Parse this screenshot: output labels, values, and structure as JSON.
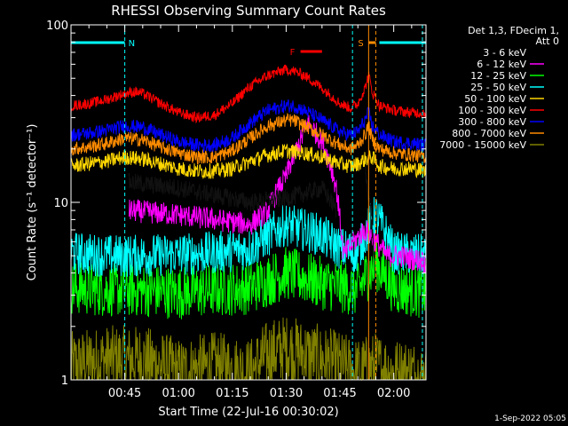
{
  "chart_data": {
    "type": "line",
    "title": "RHESSI Observing Summary Count Rates",
    "xlabel": "Start Time (22-Jul-16 00:30:02)",
    "ylabel": "Count Rate (s⁻¹ detector⁻¹)",
    "yscale": "log",
    "ylim": [
      1,
      100
    ],
    "xlim_minutes": [
      0,
      99
    ],
    "x_tick_labels": [
      "00:45",
      "01:00",
      "01:15",
      "01:30",
      "01:45",
      "02:00"
    ],
    "x_tick_minutes": [
      15,
      30,
      45,
      60,
      75,
      90
    ],
    "y_tick_labels": [
      "1",
      "10",
      "100"
    ],
    "y_tick_values": [
      1,
      10,
      100
    ],
    "legend_header": [
      "Det 1,3, FDecim 1,",
      "Att 0"
    ],
    "legend_position": "top-right",
    "series": [
      {
        "name": "3 - 6 keV",
        "color": "#000000",
        "x": [
          0,
          15,
          16,
          30,
          40,
          50,
          60,
          70,
          74,
          75,
          76,
          82,
          85,
          88,
          92,
          95,
          99
        ],
        "y": [
          null,
          null,
          13,
          12,
          11,
          10,
          10.5,
          12,
          9,
          null,
          null,
          15,
          3,
          null,
          null,
          null,
          null
        ]
      },
      {
        "name": "6 - 12 keV",
        "color": "#ff00ff",
        "x": [
          0,
          15,
          16,
          30,
          40,
          50,
          55,
          60,
          64,
          66,
          70,
          74,
          75,
          76,
          82,
          85,
          88,
          92,
          95,
          98,
          99
        ],
        "y": [
          null,
          null,
          9,
          8.5,
          8,
          7.5,
          9,
          14,
          22,
          28,
          22,
          12,
          8,
          5,
          7,
          6,
          5,
          5,
          4.8,
          4.7,
          4.5
        ]
      },
      {
        "name": "12 - 25 keV",
        "color": "#00ff00",
        "x": [
          0,
          10,
          20,
          30,
          40,
          50,
          60,
          70,
          80,
          85,
          90,
          95,
          99
        ],
        "y": [
          3.3,
          3.2,
          3.2,
          3.1,
          3.2,
          3.3,
          4.0,
          3.5,
          3.2,
          4.5,
          3.3,
          3.2,
          3.1
        ]
      },
      {
        "name": "25 - 50 keV",
        "color": "#00ffff",
        "x": [
          0,
          10,
          20,
          30,
          40,
          50,
          60,
          70,
          75,
          80,
          85,
          90,
          95,
          99
        ],
        "y": [
          5.2,
          5.0,
          5.0,
          5.1,
          5.2,
          5.5,
          7.5,
          6.5,
          5.5,
          5.2,
          8.5,
          5.2,
          5.1,
          5.0
        ]
      },
      {
        "name": "50 - 100 keV",
        "color": "#ffd700",
        "x": [
          0,
          5,
          10,
          15,
          20,
          25,
          30,
          35,
          40,
          45,
          50,
          55,
          60,
          65,
          70,
          75,
          78,
          80,
          82,
          84,
          86,
          90,
          95,
          99
        ],
        "y": [
          16,
          16.5,
          17,
          18,
          17.5,
          16.5,
          15.5,
          15,
          15,
          15.5,
          17,
          18.5,
          19.5,
          19,
          18,
          16.5,
          16,
          16.5,
          17.5,
          18,
          16,
          15.5,
          15.5,
          15
        ]
      },
      {
        "name": "100 - 300 keV",
        "color": "#ff0000",
        "x": [
          0,
          5,
          10,
          15,
          18,
          20,
          25,
          30,
          35,
          40,
          45,
          50,
          55,
          60,
          62,
          65,
          70,
          75,
          78,
          80,
          82,
          83,
          84,
          86,
          90,
          95,
          99
        ],
        "y": [
          35,
          36,
          38,
          41,
          42,
          41,
          36,
          32,
          30,
          31,
          36,
          45,
          52,
          56,
          55,
          52,
          44,
          36,
          34,
          36,
          44,
          52,
          42,
          35,
          33,
          32,
          32
        ]
      },
      {
        "name": "300 - 800 keV",
        "color": "#0000ff",
        "x": [
          0,
          5,
          10,
          15,
          20,
          25,
          30,
          35,
          40,
          45,
          50,
          55,
          60,
          62,
          65,
          70,
          75,
          78,
          80,
          82,
          83,
          84,
          86,
          90,
          95,
          99
        ],
        "y": [
          24,
          24.5,
          25.5,
          27,
          26.5,
          24,
          22,
          21,
          21,
          23,
          28,
          33,
          35,
          35,
          33,
          29,
          25,
          24,
          25,
          29,
          32,
          27,
          24,
          22,
          21.5,
          21
        ]
      },
      {
        "name": "800 - 7000 keV",
        "color": "#ff8c00",
        "x": [
          0,
          5,
          10,
          15,
          20,
          25,
          30,
          35,
          40,
          45,
          50,
          55,
          60,
          62,
          65,
          70,
          75,
          78,
          80,
          82,
          83,
          84,
          86,
          90,
          95,
          99
        ],
        "y": [
          20,
          20.5,
          21.5,
          23,
          22.5,
          20.5,
          19,
          18,
          18,
          19.5,
          23,
          27,
          29,
          29,
          27,
          24,
          21,
          20,
          21,
          24,
          27,
          22.5,
          20,
          19,
          18.5,
          18
        ]
      },
      {
        "name": "7000 - 15000 keV",
        "color": "#808000",
        "x": [
          0,
          10,
          20,
          30,
          40,
          50,
          55,
          60,
          65,
          70,
          75,
          80,
          85,
          90,
          95,
          99
        ],
        "y": [
          1.2,
          1.3,
          1.3,
          1.1,
          1.2,
          1.1,
          1.4,
          1.5,
          1.4,
          1.3,
          1.2,
          1.1,
          1.2,
          1.1,
          1.1,
          1.0
        ]
      }
    ],
    "flags": [
      {
        "label": "N",
        "color": "#00ffff",
        "x_start": 0,
        "x_end": 15
      },
      {
        "label": "F",
        "color": "#ff0000",
        "x_start": 64,
        "x_end": 70
      },
      {
        "label": "S",
        "color": "#ff8c00",
        "x_start": 83,
        "x_end": 85
      },
      {
        "label": "",
        "color": "#00ffff",
        "x_start": 86,
        "x_end": 99
      }
    ],
    "vertical_markers": [
      {
        "x": 15,
        "color": "#00ffff",
        "style": "dashed"
      },
      {
        "x": 78.5,
        "color": "#00ffff",
        "style": "dashed"
      },
      {
        "x": 98,
        "color": "#00ffff",
        "style": "dashed"
      },
      {
        "x": 83.0,
        "color": "#ff8c00",
        "style": "solid"
      },
      {
        "x": 85.0,
        "color": "#ff8c00",
        "style": "dashed"
      }
    ],
    "grid": false
  },
  "footer": {
    "timestamp": "1-Sep-2022 05:05"
  }
}
